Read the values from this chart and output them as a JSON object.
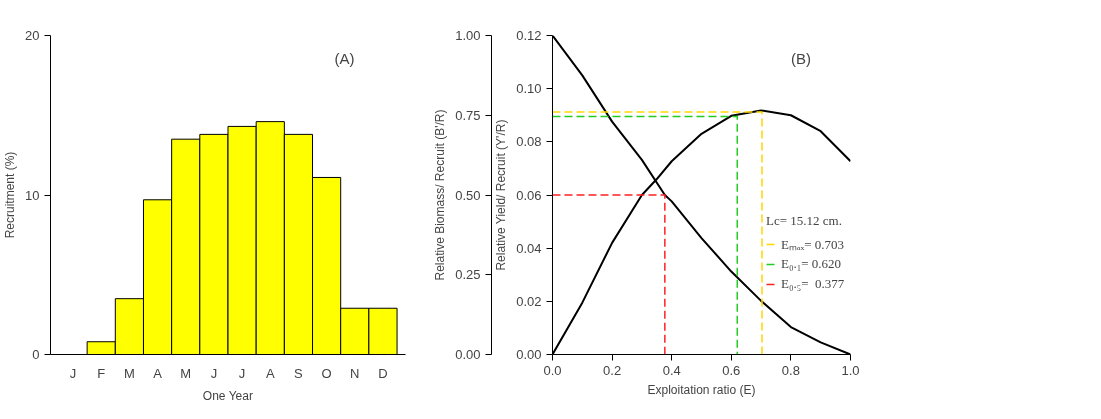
{
  "chart_data": [
    {
      "type": "bar",
      "ylabel": "Recruitment (%)",
      "xlabel": "One Year",
      "annotations": [
        "(A)"
      ],
      "categories": [
        "J",
        "F",
        "M",
        "A",
        "M",
        "J",
        "J",
        "A",
        "S",
        "O",
        "N",
        "D"
      ],
      "values": [
        null,
        0.8,
        3.5,
        9.7,
        13.5,
        13.8,
        14.3,
        14.6,
        13.8,
        11.1,
        2.9,
        2.9
      ],
      "color": "#ffff00",
      "ylim": [
        0,
        20
      ],
      "yticks": [
        0,
        10,
        20
      ],
      "grid": false
    },
    {
      "type": "line",
      "xlabel": "Exploitation ratio (E)",
      "ylabel": "Relative Yield/ Recruit (Y'/R)",
      "y2label": "Relative Biomass/ Recruit (B'/R)",
      "annotations": [
        "(B)"
      ],
      "legend_title": "Lc= 15.12 cm.",
      "legend": "right",
      "grid": false,
      "xlim": [
        0,
        1
      ],
      "xticks": [
        {
          "value": 0,
          "label": "0.0"
        },
        {
          "value": 0.2,
          "label": "0.2"
        },
        {
          "value": 0.4,
          "label": "0.4"
        },
        {
          "value": 0.6,
          "label": "0.6"
        },
        {
          "value": 0.8,
          "label": "0.8"
        },
        {
          "value": 1,
          "label": "1.0"
        }
      ],
      "ylim": [
        0,
        0.12
      ],
      "yticks": [
        {
          "value": 0,
          "label": "0.00"
        },
        {
          "value": 0.02,
          "label": "0.02"
        },
        {
          "value": 0.04,
          "label": "0.04"
        },
        {
          "value": 0.06,
          "label": "0.06"
        },
        {
          "value": 0.08,
          "label": "0.08"
        },
        {
          "value": 0.1,
          "label": "0.10"
        },
        {
          "value": 0.12,
          "label": "0.12"
        }
      ],
      "y2lim": [
        0,
        1
      ],
      "y2ticks": [
        {
          "value": 0,
          "label": "0.00"
        },
        {
          "value": 0.25,
          "label": "0.25"
        },
        {
          "value": 0.5,
          "label": "0.50"
        },
        {
          "value": 0.75,
          "label": "0.75"
        },
        {
          "value": 1,
          "label": "1.00"
        }
      ],
      "series": [
        {
          "color": "#000000",
          "line_style": "solid",
          "x": [
            0,
            0.1,
            0.2,
            0.3,
            0.35,
            0.4,
            0.5,
            0.6,
            0.7,
            0.8,
            0.9,
            1.0
          ],
          "values": [
            0,
            0.0195,
            0.042,
            0.06,
            0.066,
            0.0727,
            0.083,
            0.0898,
            0.0918,
            0.09,
            0.084,
            0.0727
          ]
        },
        {
          "color": "#000000",
          "line_style": "solid",
          "axis": "y2",
          "x": [
            0,
            0.1,
            0.2,
            0.3,
            0.377,
            0.4,
            0.5,
            0.6,
            0.7,
            0.8,
            0.9,
            1.0
          ],
          "values": [
            1.0,
            0.875,
            0.73,
            0.61,
            0.5,
            0.48,
            0.365,
            0.26,
            0.168,
            0.086,
            0.038,
            0
          ]
        },
        {
          "name": "Eₘₐₓ= 0.703",
          "color": "#ffd700",
          "line_style": "dashed",
          "x": [
            0,
            0.703,
            0.703
          ],
          "values": [
            0.0912,
            0.0912,
            0
          ]
        },
        {
          "name": "E₀.₁= 0.620",
          "color": "#22cc22",
          "line_style": "dashed",
          "x": [
            0,
            0.62,
            0.62
          ],
          "values": [
            0.0895,
            0.0895,
            0
          ]
        },
        {
          "name": "E₀.₅=  0.377",
          "color": "#ff2020",
          "line_style": "dashed",
          "x": [
            0,
            0.377,
            0.377
          ],
          "values": [
            0.06,
            0.06,
            0
          ]
        }
      ]
    }
  ]
}
